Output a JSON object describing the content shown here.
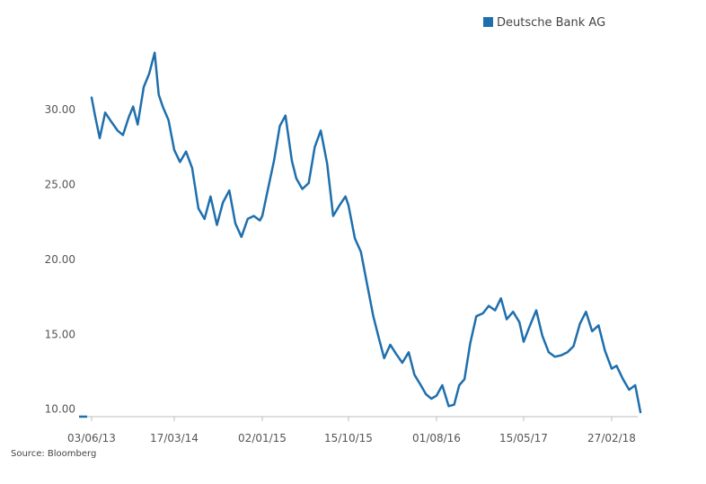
{
  "chart_data": {
    "type": "line",
    "title": "",
    "xlabel": "",
    "ylabel": "",
    "ylim": [
      9.5,
      34.5
    ],
    "yticks": [
      10,
      15,
      20,
      25,
      30
    ],
    "ytick_labels": [
      "10.00",
      "15.00",
      "20.00",
      "25.00",
      "30.00"
    ],
    "xticks": [
      "03/06/13",
      "17/03/14",
      "02/01/15",
      "15/10/15",
      "01/08/16",
      "15/05/17",
      "27/02/18"
    ],
    "grid": false,
    "legend_position": "top-right",
    "series": [
      {
        "name": "Deutsche Bank AG",
        "color": "#1f6fad",
        "x": [
          "2013-06-03",
          "2013-06-15",
          "2013-07-01",
          "2013-07-20",
          "2013-08-10",
          "2013-09-01",
          "2013-09-20",
          "2013-10-10",
          "2013-10-25",
          "2013-11-10",
          "2013-12-01",
          "2013-12-20",
          "2014-01-08",
          "2014-01-22",
          "2014-02-05",
          "2014-02-25",
          "2014-03-17",
          "2014-04-05",
          "2014-04-25",
          "2014-05-15",
          "2014-06-05",
          "2014-06-25",
          "2014-07-15",
          "2014-08-05",
          "2014-08-25",
          "2014-09-15",
          "2014-10-05",
          "2014-10-25",
          "2014-11-15",
          "2014-12-05",
          "2014-12-25",
          "2015-01-02",
          "2015-01-20",
          "2015-02-10",
          "2015-03-01",
          "2015-03-20",
          "2015-04-10",
          "2015-04-25",
          "2015-05-15",
          "2015-06-05",
          "2015-06-25",
          "2015-07-15",
          "2015-08-05",
          "2015-08-25",
          "2015-09-15",
          "2015-10-05",
          "2015-10-15",
          "2015-11-05",
          "2015-11-25",
          "2015-12-15",
          "2016-01-05",
          "2016-01-25",
          "2016-02-10",
          "2016-03-01",
          "2016-03-20",
          "2016-04-10",
          "2016-05-01",
          "2016-05-20",
          "2016-06-10",
          "2016-06-27",
          "2016-07-15",
          "2016-08-01",
          "2016-08-20",
          "2016-09-10",
          "2016-09-28",
          "2016-10-15",
          "2016-11-01",
          "2016-11-20",
          "2016-12-10",
          "2017-01-01",
          "2017-01-20",
          "2017-02-10",
          "2017-03-01",
          "2017-03-20",
          "2017-04-10",
          "2017-05-01",
          "2017-05-15",
          "2017-06-05",
          "2017-06-25",
          "2017-07-15",
          "2017-08-05",
          "2017-08-25",
          "2017-09-15",
          "2017-10-05",
          "2017-10-25",
          "2017-11-15",
          "2017-12-05",
          "2017-12-25",
          "2018-01-15",
          "2018-02-05",
          "2018-02-27",
          "2018-03-15",
          "2018-04-05",
          "2018-04-25",
          "2018-05-15",
          "2018-06-01"
        ],
        "y": [
          30.8,
          29.6,
          28.1,
          29.8,
          29.2,
          28.6,
          28.3,
          29.5,
          30.2,
          29.0,
          31.5,
          32.4,
          33.8,
          31.0,
          30.2,
          29.3,
          27.3,
          26.5,
          27.2,
          26.1,
          23.4,
          22.7,
          24.2,
          22.3,
          23.8,
          24.6,
          22.4,
          21.5,
          22.7,
          22.9,
          22.6,
          22.9,
          24.6,
          26.6,
          28.9,
          29.6,
          26.6,
          25.4,
          24.7,
          25.1,
          27.5,
          28.6,
          26.4,
          22.9,
          23.6,
          24.2,
          23.6,
          21.4,
          20.5,
          18.4,
          16.2,
          14.6,
          13.4,
          14.3,
          13.7,
          13.1,
          13.8,
          12.3,
          11.6,
          11.0,
          10.7,
          10.9,
          11.6,
          10.2,
          10.3,
          11.6,
          12.0,
          14.4,
          16.2,
          16.4,
          16.9,
          16.6,
          17.4,
          16.0,
          16.5,
          15.8,
          14.5,
          15.6,
          16.6,
          14.9,
          13.8,
          13.5,
          13.6,
          13.8,
          14.2,
          15.7,
          16.5,
          15.2,
          15.6,
          13.9,
          12.7,
          12.9,
          12.0,
          11.3,
          11.6,
          9.8
        ]
      }
    ]
  },
  "source_note": "Source: Bloomberg"
}
